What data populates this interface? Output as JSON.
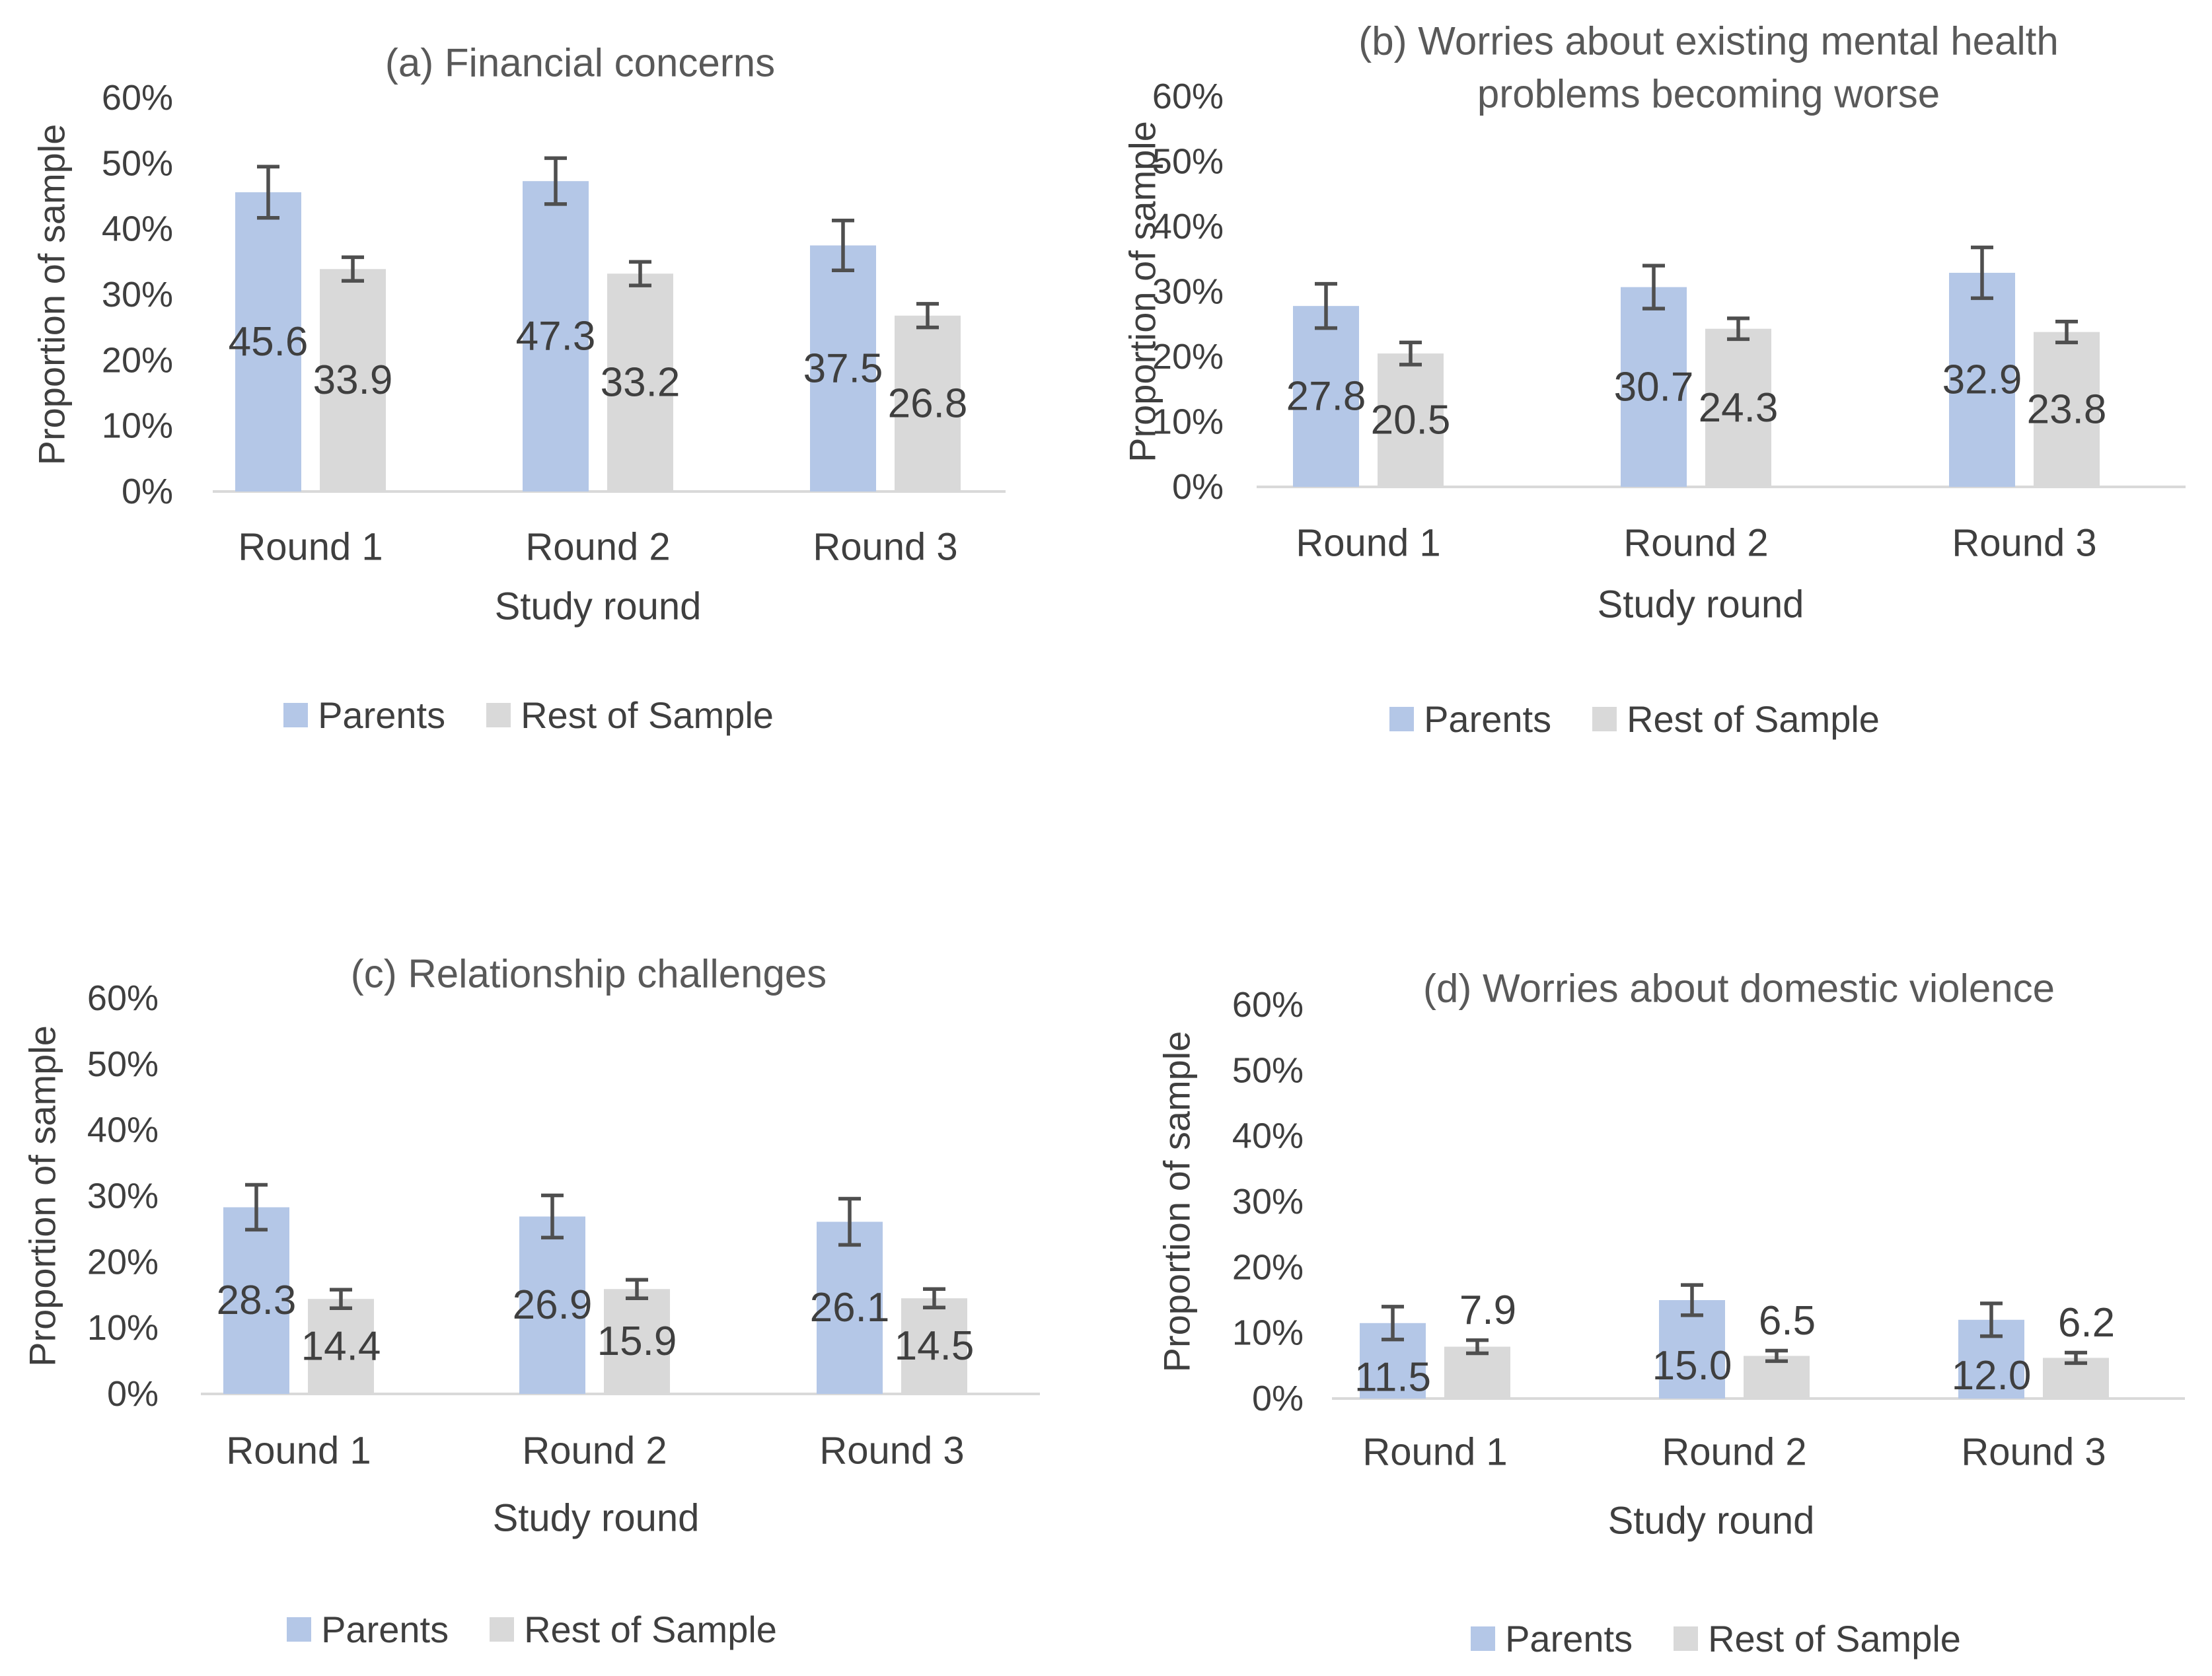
{
  "figure": {
    "background": "#ffffff",
    "text_color": "#3f3f3f",
    "title_color": "#595959",
    "axis_line_color": "#d9d9d9",
    "error_bar_color": "#4f4f4f"
  },
  "legend": {
    "items": [
      {
        "label": "Parents",
        "color": "#b4c7e7"
      },
      {
        "label": "Rest of Sample",
        "color": "#d9d9d9"
      }
    ]
  },
  "chart_data": [
    {
      "id": "a",
      "type": "bar",
      "title": "(a) Financial concerns",
      "title_lines": [
        "(a) Financial concerns"
      ],
      "xlabel": "Study round",
      "ylabel": "Proportion of sample",
      "categories": [
        "Round 1",
        "Round 2",
        "Round 3"
      ],
      "ylim": [
        0,
        60
      ],
      "y_tick_labels": [
        "0%",
        "10%",
        "20%",
        "30%",
        "40%",
        "50%",
        "60%"
      ],
      "grid": false,
      "legend_position": "bottom",
      "error_bars": true,
      "series": [
        {
          "name": "Parents",
          "color": "#b4c7e7",
          "values": [
            45.6,
            47.3,
            37.5
          ],
          "value_labels": [
            "45.6",
            "47.3",
            "37.5"
          ],
          "errors": [
            3.9,
            3.5,
            3.8
          ],
          "data_label_position": "inside-center"
        },
        {
          "name": "Rest of Sample",
          "color": "#d9d9d9",
          "values": [
            33.9,
            33.2,
            26.8
          ],
          "value_labels": [
            "33.9",
            "33.2",
            "26.8"
          ],
          "errors": [
            1.8,
            1.8,
            1.8
          ],
          "data_label_position": "inside-center"
        }
      ]
    },
    {
      "id": "b",
      "type": "bar",
      "title": "(b) Worries about existing mental health problems becoming worse",
      "title_lines": [
        "(b) Worries about existing mental health",
        "problems becoming worse"
      ],
      "xlabel": "Study round",
      "ylabel": "Proportion of sample",
      "categories": [
        "Round 1",
        "Round 2",
        "Round 3"
      ],
      "ylim": [
        0,
        60
      ],
      "y_tick_labels": [
        "0%",
        "10%",
        "20%",
        "30%",
        "40%",
        "50%",
        "60%"
      ],
      "grid": false,
      "legend_position": "bottom",
      "error_bars": true,
      "series": [
        {
          "name": "Parents",
          "color": "#b4c7e7",
          "values": [
            27.8,
            30.7,
            32.9
          ],
          "value_labels": [
            "27.8",
            "30.7",
            "32.9"
          ],
          "errors": [
            3.4,
            3.3,
            3.9
          ],
          "data_label_position": "inside-center"
        },
        {
          "name": "Rest of Sample",
          "color": "#d9d9d9",
          "values": [
            20.5,
            24.3,
            23.8
          ],
          "value_labels": [
            "20.5",
            "24.3",
            "23.8"
          ],
          "errors": [
            1.7,
            1.6,
            1.6
          ],
          "data_label_position": "inside-center"
        }
      ]
    },
    {
      "id": "c",
      "type": "bar",
      "title": "(c) Relationship challenges",
      "title_lines": [
        "(c) Relationship challenges"
      ],
      "xlabel": "Study round",
      "ylabel": "Proportion of sample",
      "categories": [
        "Round 1",
        "Round 2",
        "Round 3"
      ],
      "ylim": [
        0,
        60
      ],
      "y_tick_labels": [
        "0%",
        "10%",
        "20%",
        "30%",
        "40%",
        "50%",
        "60%"
      ],
      "grid": false,
      "legend_position": "bottom",
      "error_bars": true,
      "series": [
        {
          "name": "Parents",
          "color": "#b4c7e7",
          "values": [
            28.3,
            26.9,
            26.1
          ],
          "value_labels": [
            "28.3",
            "26.9",
            "26.1"
          ],
          "errors": [
            3.4,
            3.2,
            3.5
          ],
          "data_label_position": "inside-center"
        },
        {
          "name": "Rest of Sample",
          "color": "#d9d9d9",
          "values": [
            14.4,
            15.9,
            14.5
          ],
          "value_labels": [
            "14.4",
            "15.9",
            "14.5"
          ],
          "errors": [
            1.4,
            1.4,
            1.4
          ],
          "data_label_position": "inside-center"
        }
      ]
    },
    {
      "id": "d",
      "type": "bar",
      "title": "(d) Worries about domestic violence",
      "title_lines": [
        "(d) Worries about domestic violence"
      ],
      "xlabel": "Study round",
      "ylabel": "Proportion of sample",
      "categories": [
        "Round 1",
        "Round 2",
        "Round 3"
      ],
      "ylim": [
        0,
        60
      ],
      "y_tick_labels": [
        "0%",
        "10%",
        "20%",
        "30%",
        "40%",
        "50%",
        "60%"
      ],
      "grid": false,
      "legend_position": "bottom",
      "error_bars": true,
      "series": [
        {
          "name": "Parents",
          "color": "#b4c7e7",
          "values": [
            11.5,
            15.0,
            12.0
          ],
          "value_labels": [
            "11.5",
            "15.0",
            "12.0"
          ],
          "errors": [
            2.5,
            2.3,
            2.5
          ],
          "data_label_position": "inside-center"
        },
        {
          "name": "Rest of Sample",
          "color": "#d9d9d9",
          "values": [
            7.9,
            6.5,
            6.2
          ],
          "value_labels": [
            "7.9",
            "6.5",
            "6.2"
          ],
          "errors": [
            1.0,
            0.8,
            0.8
          ],
          "data_label_position": "outside-top"
        }
      ]
    }
  ]
}
